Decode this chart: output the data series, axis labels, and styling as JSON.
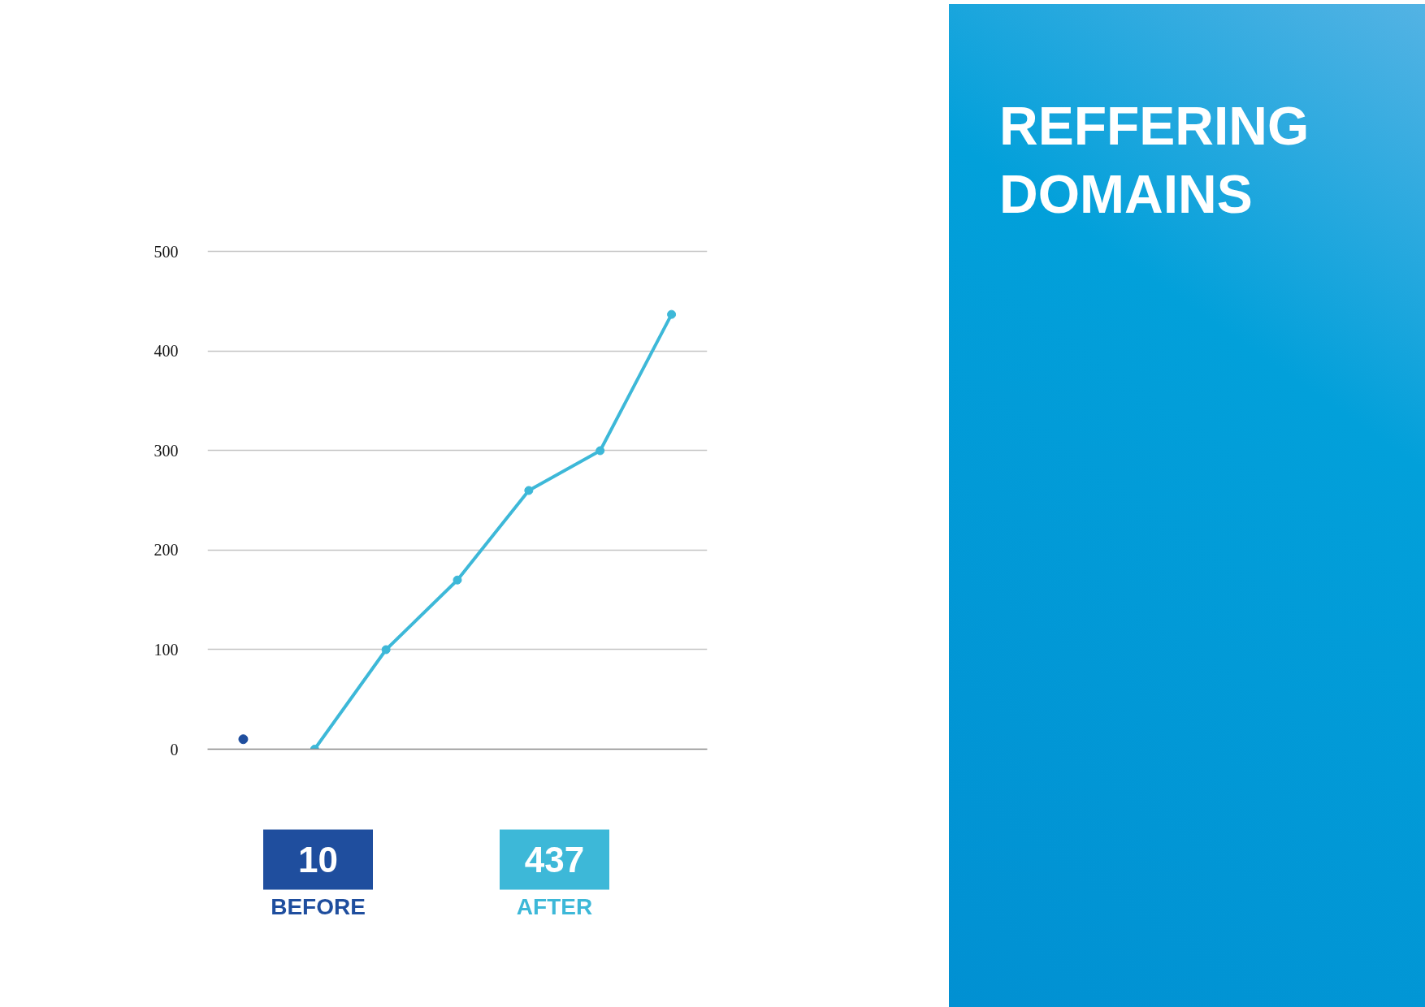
{
  "chart_data": {
    "type": "line",
    "title": "REFFERING DOMAINS",
    "categories": [
      null,
      null,
      null,
      null,
      null,
      null,
      null
    ],
    "series": [
      {
        "name": "BEFORE",
        "type": "scatter",
        "color": "#1f4e9e",
        "values": [
          10,
          null,
          null,
          null,
          null,
          null,
          null
        ]
      },
      {
        "name": "AFTER",
        "type": "line",
        "color": "#3db8d8",
        "values": [
          null,
          0,
          100,
          170,
          260,
          300,
          437
        ]
      }
    ],
    "ylim": [
      0,
      500
    ],
    "yticks": [
      0,
      100,
      200,
      300,
      400,
      500
    ],
    "grid": "y",
    "legend": "bottom",
    "marker": "circle",
    "annotations": [
      "10",
      "437"
    ]
  }
}
